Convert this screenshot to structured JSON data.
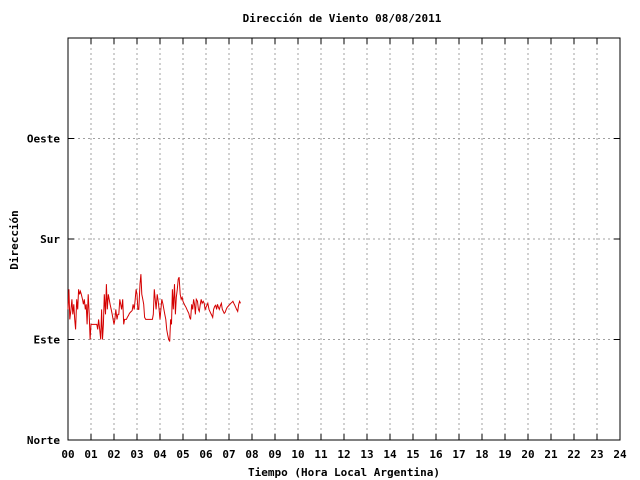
{
  "chart_data": {
    "type": "line",
    "title": "Dirección de Viento 08/08/2011",
    "xlabel": "Tiempo (Hora Local Argentina)",
    "ylabel": "Dirección",
    "xlim": [
      0,
      24
    ],
    "ylim": [
      0,
      4
    ],
    "x_ticks": [
      0,
      1,
      2,
      3,
      4,
      5,
      6,
      7,
      8,
      9,
      10,
      11,
      12,
      13,
      14,
      15,
      16,
      17,
      18,
      19,
      20,
      21,
      22,
      23,
      24
    ],
    "x_tick_labels": [
      "00",
      "01",
      "02",
      "03",
      "04",
      "05",
      "06",
      "07",
      "08",
      "09",
      "10",
      "11",
      "12",
      "13",
      "14",
      "15",
      "16",
      "17",
      "18",
      "19",
      "20",
      "21",
      "22",
      "23",
      "24"
    ],
    "y_ticks": [
      0,
      1,
      2,
      3
    ],
    "y_tick_labels": [
      "Norte",
      "Este",
      "Sur",
      "Oeste"
    ],
    "grid": true,
    "series": [
      {
        "color": "#d40000",
        "x": [
          0.0,
          0.04,
          0.08,
          0.13,
          0.17,
          0.21,
          0.25,
          0.29,
          0.33,
          0.38,
          0.42,
          0.46,
          0.5,
          0.54,
          0.58,
          0.63,
          0.67,
          0.71,
          0.75,
          0.79,
          0.83,
          0.88,
          0.92,
          0.96,
          1.0,
          1.04,
          1.08,
          1.13,
          1.17,
          1.21,
          1.25,
          1.29,
          1.33,
          1.38,
          1.42,
          1.46,
          1.5,
          1.54,
          1.58,
          1.63,
          1.67,
          1.71,
          1.75,
          1.79,
          1.83,
          1.88,
          1.92,
          1.96,
          2.0,
          2.04,
          2.08,
          2.13,
          2.17,
          2.21,
          2.25,
          2.29,
          2.33,
          2.38,
          2.42,
          2.46,
          2.5,
          2.54,
          2.58,
          2.63,
          2.67,
          2.71,
          2.75,
          2.79,
          2.83,
          2.88,
          2.92,
          2.96,
          3.0,
          3.04,
          3.08,
          3.13,
          3.17,
          3.21,
          3.25,
          3.29,
          3.33,
          3.38,
          3.42,
          3.46,
          3.5,
          3.54,
          3.58,
          3.63,
          3.67,
          3.71,
          3.75,
          3.79,
          3.83,
          3.88,
          3.92,
          3.96,
          4.0,
          4.04,
          4.08,
          4.13,
          4.17,
          4.21,
          4.25,
          4.29,
          4.33,
          4.38,
          4.42,
          4.46,
          4.5,
          4.54,
          4.58,
          4.63,
          4.67,
          4.71,
          4.75,
          4.79,
          4.83,
          4.88,
          4.92,
          4.96,
          5.0,
          5.04,
          5.08,
          5.13,
          5.17,
          5.21,
          5.25,
          5.29,
          5.33,
          5.38,
          5.42,
          5.46,
          5.5,
          5.54,
          5.58,
          5.63,
          5.67,
          5.71,
          5.75,
          5.79,
          5.83,
          5.88,
          5.92,
          5.96,
          6.0,
          6.04,
          6.08,
          6.13,
          6.17,
          6.21,
          6.25,
          6.29,
          6.33,
          6.38,
          6.42,
          6.46,
          6.5,
          6.54,
          6.58,
          6.63,
          6.67,
          6.71,
          6.75,
          6.79,
          6.83,
          6.88,
          6.92,
          6.96,
          7.0,
          7.04,
          7.08,
          7.13,
          7.17,
          7.21,
          7.25,
          7.29,
          7.33,
          7.38,
          7.42,
          7.46,
          7.5
        ],
        "y": [
          1.3,
          1.5,
          1.2,
          1.3,
          1.4,
          1.25,
          1.35,
          1.2,
          1.1,
          1.4,
          1.3,
          1.5,
          1.45,
          1.48,
          1.45,
          1.4,
          1.35,
          1.4,
          1.3,
          1.35,
          1.15,
          1.45,
          1.25,
          1.0,
          1.15,
          1.15,
          1.15,
          1.15,
          1.15,
          1.15,
          1.15,
          1.1,
          1.2,
          1.1,
          1.0,
          1.3,
          1.0,
          1.15,
          1.45,
          1.25,
          1.55,
          1.3,
          1.45,
          1.4,
          1.35,
          1.3,
          1.25,
          1.2,
          1.15,
          1.2,
          1.3,
          1.2,
          1.25,
          1.25,
          1.4,
          1.35,
          1.3,
          1.4,
          1.15,
          1.2,
          1.2,
          1.2,
          1.22,
          1.24,
          1.26,
          1.27,
          1.28,
          1.29,
          1.35,
          1.3,
          1.4,
          1.5,
          1.45,
          1.3,
          1.3,
          1.55,
          1.65,
          1.45,
          1.4,
          1.35,
          1.22,
          1.2,
          1.2,
          1.2,
          1.2,
          1.2,
          1.2,
          1.2,
          1.2,
          1.25,
          1.5,
          1.4,
          1.3,
          1.45,
          1.38,
          1.3,
          1.2,
          1.3,
          1.4,
          1.35,
          1.3,
          1.25,
          1.2,
          1.1,
          1.05,
          1.0,
          0.98,
          1.2,
          1.15,
          1.5,
          1.3,
          1.55,
          1.25,
          1.42,
          1.5,
          1.6,
          1.62,
          1.45,
          1.4,
          1.42,
          1.38,
          1.36,
          1.34,
          1.32,
          1.3,
          1.28,
          1.26,
          1.22,
          1.2,
          1.35,
          1.3,
          1.4,
          1.35,
          1.25,
          1.4,
          1.38,
          1.3,
          1.28,
          1.35,
          1.4,
          1.36,
          1.38,
          1.36,
          1.3,
          1.32,
          1.34,
          1.36,
          1.3,
          1.28,
          1.26,
          1.24,
          1.22,
          1.3,
          1.33,
          1.34,
          1.3,
          1.35,
          1.32,
          1.3,
          1.34,
          1.36,
          1.3,
          1.28,
          1.26,
          1.27,
          1.3,
          1.32,
          1.33,
          1.34,
          1.35,
          1.36,
          1.37,
          1.38,
          1.36,
          1.34,
          1.32,
          1.3,
          1.28,
          1.35,
          1.38,
          1.36
        ]
      }
    ]
  }
}
